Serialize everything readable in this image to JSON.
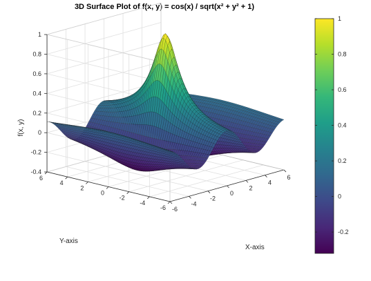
{
  "chart_data": {
    "type": "surface",
    "title": "3D Surface Plot of f(x, y) = cos(x) / sqrt(x² + y² + 1)",
    "xlabel": "X-axis",
    "ylabel": "Y-axis",
    "zlabel": "f(x, y)",
    "function": "f(x, y) = cos(x) / sqrt(x^2 + y^2 + 1)",
    "xlim": [
      -6,
      6
    ],
    "ylim": [
      -6,
      6
    ],
    "zlim": [
      -0.4,
      1
    ],
    "x_ticks": [
      "-6",
      "-4",
      "-2",
      "0",
      "2",
      "4",
      "6"
    ],
    "y_ticks": [
      "-6",
      "-4",
      "-2",
      "0",
      "2",
      "4",
      "6"
    ],
    "z_ticks": [
      "-0.4",
      "-0.2",
      "0",
      "0.2",
      "0.4",
      "0.6",
      "0.8",
      "1"
    ],
    "colormap": "viridis",
    "colorbar": {
      "range": [
        -0.32,
        1
      ],
      "ticks": [
        "-0.2",
        "0",
        "0.2",
        "0.4",
        "0.6",
        "0.8",
        "1"
      ]
    },
    "grid": true,
    "colors": {
      "viridis": [
        "#440154",
        "#482878",
        "#3e4989",
        "#31688e",
        "#26828e",
        "#1f9e89",
        "#35b779",
        "#6ece58",
        "#b5de2b",
        "#fde725"
      ],
      "edge": "#1a1a1a",
      "grid": "#e0e0e0"
    }
  }
}
